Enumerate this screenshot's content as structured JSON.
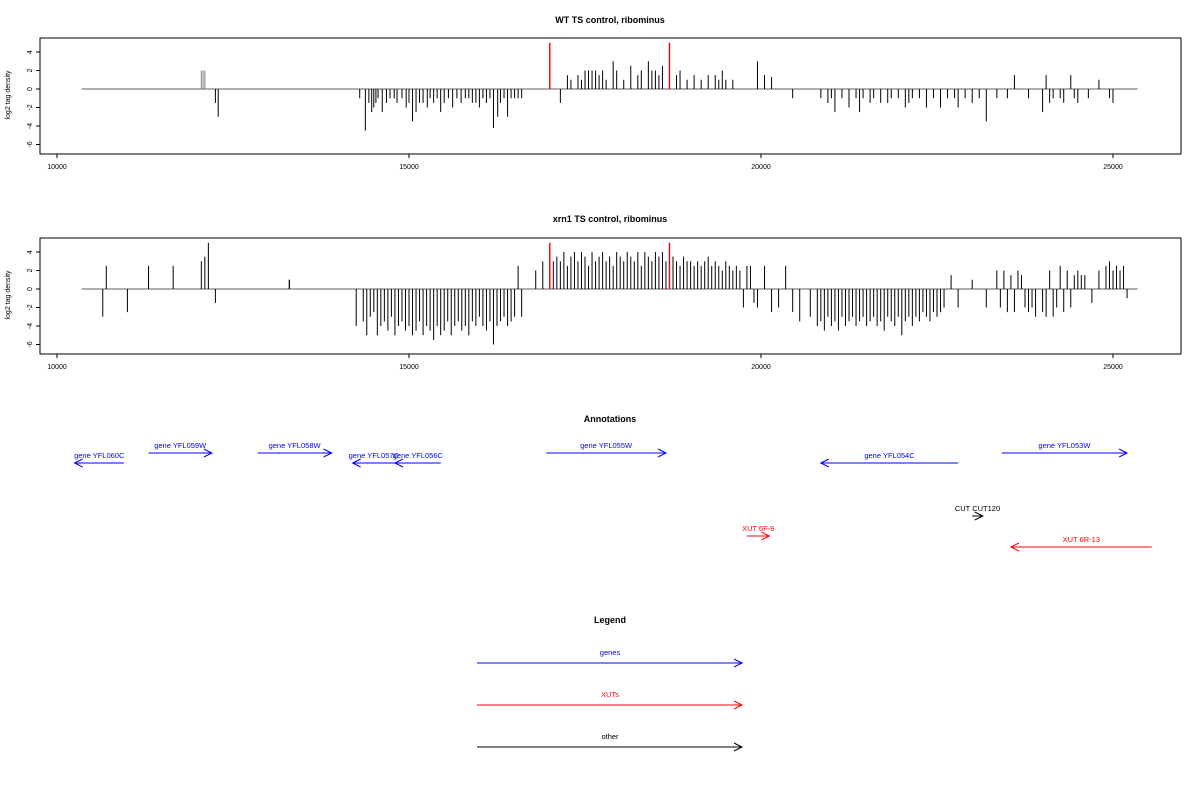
{
  "colors": {
    "genes": "#0000ff",
    "xuts": "#ff0000",
    "other": "#000000",
    "signal": "#000000",
    "wt_bars": "#808080",
    "baseline": "#808080"
  },
  "chart_data": [
    {
      "type": "bar",
      "title": "WT TS control, ribominus",
      "ylabel": "log2 tag density",
      "xlim": [
        10000,
        25400
      ],
      "ylim": [
        -6,
        5
      ],
      "xticks": [
        10000,
        15000,
        20000,
        25000
      ],
      "yticks": [
        -6,
        -4,
        -2,
        0,
        2,
        4
      ],
      "baseline_range": [
        10350,
        25350
      ],
      "series": [
        {
          "color": "gray",
          "x": [
            12050,
            12075,
            12100
          ],
          "y": [
            2,
            2,
            2
          ]
        },
        {
          "color": "black",
          "x": [
            12250,
            12290,
            14300,
            14380,
            14430,
            14470,
            14500,
            14530,
            14560,
            14620,
            14680,
            14730,
            14790,
            14830,
            14900,
            14960,
            15000,
            15050,
            15100,
            15150,
            15200,
            15260,
            15300,
            15350,
            15400,
            15450,
            15500,
            15560,
            15620,
            15680,
            15740,
            15800,
            15850,
            15900,
            15950,
            16000,
            16050,
            16100,
            16150,
            16200,
            16260,
            16300,
            16350,
            16400,
            16450,
            16500,
            16550,
            16600,
            17150,
            17250,
            17300,
            17400,
            17450,
            17500,
            17550,
            17600,
            17650,
            17700,
            17750,
            17800,
            17900,
            17950,
            18050,
            18150,
            18250,
            18300,
            18400,
            18450,
            18500,
            18550,
            18600,
            18800,
            18850,
            18950,
            19050,
            19150,
            19250,
            19350,
            19400,
            19450,
            19500,
            19600,
            19950,
            20050,
            20150,
            20450,
            20850,
            20950,
            21000,
            21050,
            21150,
            21250,
            21350,
            21400,
            21450,
            21550,
            21600,
            21700,
            21800,
            21850,
            21950,
            22050,
            22100,
            22150,
            22250,
            22350,
            22450,
            22550,
            22650,
            22750,
            22800,
            22900,
            23000,
            23100,
            23200,
            23350,
            23500,
            23600,
            23800,
            24000,
            24050,
            24100,
            24150,
            24250,
            24300,
            24400,
            24450,
            24500,
            24650,
            24800,
            24950,
            25000
          ],
          "y": [
            -1.5,
            -3,
            -1,
            -4.5,
            -1.5,
            -2.5,
            -2,
            -1.5,
            -1,
            -2.5,
            -1.5,
            -1,
            -1,
            -1.5,
            -1,
            -2,
            -1.5,
            -3.5,
            -2.5,
            -1.5,
            -1.5,
            -2,
            -1,
            -1.5,
            -1,
            -2.5,
            -1.5,
            -1,
            -2,
            -1,
            -1.5,
            -1,
            -1,
            -1.5,
            -1.5,
            -2,
            -1,
            -1.5,
            -1,
            -4.2,
            -3,
            -1.5,
            -1,
            -3,
            -1,
            -1,
            -1,
            -1,
            -1.5,
            1.5,
            1,
            1.5,
            1,
            2,
            2,
            2,
            2,
            1.5,
            2,
            1,
            3,
            2,
            1,
            2.5,
            1.5,
            2,
            3,
            2,
            2,
            1.5,
            2.5,
            1.5,
            2,
            1,
            1.5,
            1,
            1.5,
            1.5,
            1,
            2,
            1,
            1,
            3,
            1.5,
            1.3,
            -1,
            -1,
            -1.5,
            -1,
            -2.5,
            -1,
            -2,
            -1,
            -2.5,
            -1,
            -1.5,
            -1,
            -1.5,
            -1.5,
            -1,
            -1,
            -2,
            -1.5,
            -1,
            -1,
            -2,
            -1,
            -2,
            -1,
            -1,
            -2,
            -1,
            -1.5,
            -1,
            -3.5,
            -1,
            -1,
            1.5,
            -1,
            -2.5,
            1.5,
            -1.5,
            -1,
            -1,
            -1.5,
            1.5,
            -1,
            -1.5,
            -1,
            1,
            -1,
            -1.5
          ]
        },
        {
          "color": "red",
          "x": [
            17000,
            18700
          ],
          "y": [
            5,
            5
          ]
        }
      ]
    },
    {
      "type": "bar",
      "title": "xrn1 TS control, ribominus",
      "ylabel": "log2 tag density",
      "xlim": [
        10000,
        25400
      ],
      "ylim": [
        -6,
        5
      ],
      "xticks": [
        10000,
        15000,
        20000,
        25000
      ],
      "yticks": [
        -6,
        -4,
        -2,
        0,
        2,
        4
      ],
      "baseline_range": [
        10350,
        25350
      ],
      "series": [
        {
          "color": "black",
          "x": [
            10650,
            10700,
            11000,
            11300,
            11650,
            12050,
            12100,
            12150,
            12250,
            13300,
            13300,
            14250,
            14350,
            14400,
            14450,
            14500,
            14550,
            14600,
            14650,
            14700,
            14750,
            14800,
            14850,
            14900,
            14950,
            15000,
            15050,
            15100,
            15150,
            15200,
            15250,
            15300,
            15350,
            15400,
            15450,
            15500,
            15550,
            15600,
            15650,
            15700,
            15750,
            15800,
            15850,
            15900,
            15950,
            16000,
            16050,
            16100,
            16150,
            16200,
            16250,
            16300,
            16350,
            16400,
            16450,
            16500,
            16550,
            16600,
            16800,
            16900,
            17000,
            17050,
            17100,
            17150,
            17200,
            17250,
            17300,
            17350,
            17400,
            17450,
            17500,
            17550,
            17600,
            17650,
            17700,
            17750,
            17800,
            17850,
            17900,
            17950,
            18000,
            18050,
            18100,
            18150,
            18200,
            18250,
            18300,
            18350,
            18400,
            18450,
            18500,
            18550,
            18600,
            18650,
            18700,
            18750,
            18800,
            18850,
            18900,
            18950,
            19000,
            19050,
            19100,
            19150,
            19200,
            19250,
            19300,
            19350,
            19400,
            19450,
            19500,
            19550,
            19600,
            19650,
            19700,
            19750,
            19800,
            19850,
            19900,
            19950,
            20050,
            20150,
            20250,
            20350,
            20450,
            20550,
            20700,
            20800,
            20850,
            20900,
            20950,
            21000,
            21050,
            21100,
            21150,
            21200,
            21250,
            21300,
            21350,
            21400,
            21450,
            21500,
            21550,
            21600,
            21650,
            21700,
            21750,
            21800,
            21850,
            21900,
            21950,
            22000,
            22050,
            22100,
            22150,
            22200,
            22250,
            22300,
            22350,
            22400,
            22450,
            22500,
            22550,
            22600,
            22700,
            22800,
            23000,
            23200,
            23350,
            23400,
            23450,
            23500,
            23550,
            23600,
            23650,
            23700,
            23750,
            23800,
            23850,
            23900,
            24000,
            24050,
            24100,
            24150,
            24200,
            24250,
            24300,
            24350,
            24400,
            24450,
            24500,
            24550,
            24600,
            24700,
            24800,
            24900,
            24950,
            25000,
            25050,
            25100,
            25150,
            25200
          ],
          "y": [
            -3,
            2.5,
            -2.5,
            2.5,
            2.5,
            3,
            3.5,
            5,
            -1.5,
            1,
            1,
            -4,
            -3.5,
            -5,
            -3,
            -2.5,
            -5,
            -4,
            -3.5,
            -4.5,
            -3,
            -5,
            -4,
            -3.5,
            -4.5,
            -4,
            -5,
            -4.5,
            -3.5,
            -5,
            -4,
            -4.5,
            -5.5,
            -4,
            -5,
            -4.5,
            -3.5,
            -5,
            -4,
            -3.5,
            -4.5,
            -4,
            -5,
            -3.5,
            -4,
            -3,
            -4,
            -4.5,
            -3.5,
            -6,
            -4,
            -3.5,
            -3,
            -4,
            -3.5,
            -3,
            2.5,
            -3,
            2,
            3,
            4.5,
            3,
            3.5,
            3,
            4,
            2.5,
            3.5,
            4,
            3,
            4,
            3.5,
            2.5,
            4,
            3,
            3.5,
            4,
            3,
            3.5,
            2.5,
            4,
            3.5,
            3,
            4,
            3.5,
            3,
            4,
            2.5,
            4,
            3.5,
            3,
            4,
            3.5,
            4,
            3,
            4,
            3.5,
            3,
            2.5,
            3.5,
            3,
            3,
            2.5,
            3,
            2.5,
            3,
            3.5,
            2.5,
            3,
            2.5,
            2,
            3,
            2.5,
            2,
            2.5,
            2,
            -2,
            2.5,
            2.5,
            -1.5,
            -2,
            2.5,
            -2.5,
            -2,
            2.5,
            -2.5,
            -3.5,
            -3,
            -4,
            -3.5,
            -4.5,
            -3,
            -4,
            -3.5,
            -4.5,
            -3,
            -4,
            -3.5,
            -3,
            -4,
            -3.5,
            -3,
            -4,
            -3.5,
            -3,
            -4,
            -3.5,
            -4.5,
            -3,
            -3.5,
            -4,
            -3,
            -5,
            -3.5,
            -3,
            -4,
            -3,
            -3.5,
            -2.5,
            -3,
            -3.5,
            -2.5,
            -3,
            -2.5,
            -2,
            1.5,
            -2,
            1,
            -2,
            2,
            -2,
            2,
            -2.5,
            1.5,
            -2.5,
            2,
            1.5,
            -2,
            -2.5,
            -2,
            -3,
            -2.5,
            -3,
            2,
            -3,
            -2,
            2.5,
            -2.5,
            2,
            -2,
            1.5,
            2,
            1.5,
            1.5,
            -1.5,
            2,
            2.5,
            3,
            2,
            2.5,
            2,
            2.5,
            -1
          ]
        },
        {
          "color": "red",
          "x": [
            17000,
            18700
          ],
          "y": [
            5,
            5
          ]
        }
      ]
    }
  ],
  "annotations": {
    "title": "Annotations",
    "genes": [
      {
        "label": "gene YFL060C",
        "start": 10950,
        "end": 10250,
        "row": 2
      },
      {
        "label": "gene YFL059W",
        "start": 11300,
        "end": 12200,
        "row": 1
      },
      {
        "label": "gene YFL058W",
        "start": 12850,
        "end": 13900,
        "row": 1
      },
      {
        "label": "gene YFL057C",
        "start": 14800,
        "end": 14200,
        "row": 2
      },
      {
        "label": "gene YFL056C",
        "start": 15450,
        "end": 14800,
        "row": 2
      },
      {
        "label": "gene YFL055W",
        "start": 16950,
        "end": 18650,
        "row": 1
      },
      {
        "label": "gene YFL054C",
        "start": 22800,
        "end": 20850,
        "row": 2
      },
      {
        "label": "gene YFL053W",
        "start": 23420,
        "end": 25200,
        "row": 1
      }
    ],
    "xuts": [
      {
        "label": "XUT 6F-9",
        "start": 19800,
        "end": 20120,
        "row": 4
      },
      {
        "label": "XUT 6R-13",
        "start": 25550,
        "end": 23550,
        "row": 5
      }
    ],
    "other": [
      {
        "label": "CUT CUT120",
        "start": 23000,
        "end": 23150,
        "row": 3
      }
    ]
  },
  "legend": {
    "title": "Legend",
    "items": [
      {
        "label": "genes",
        "key": "genes"
      },
      {
        "label": "XUTs",
        "key": "xuts"
      },
      {
        "label": "other",
        "key": "other"
      }
    ]
  }
}
